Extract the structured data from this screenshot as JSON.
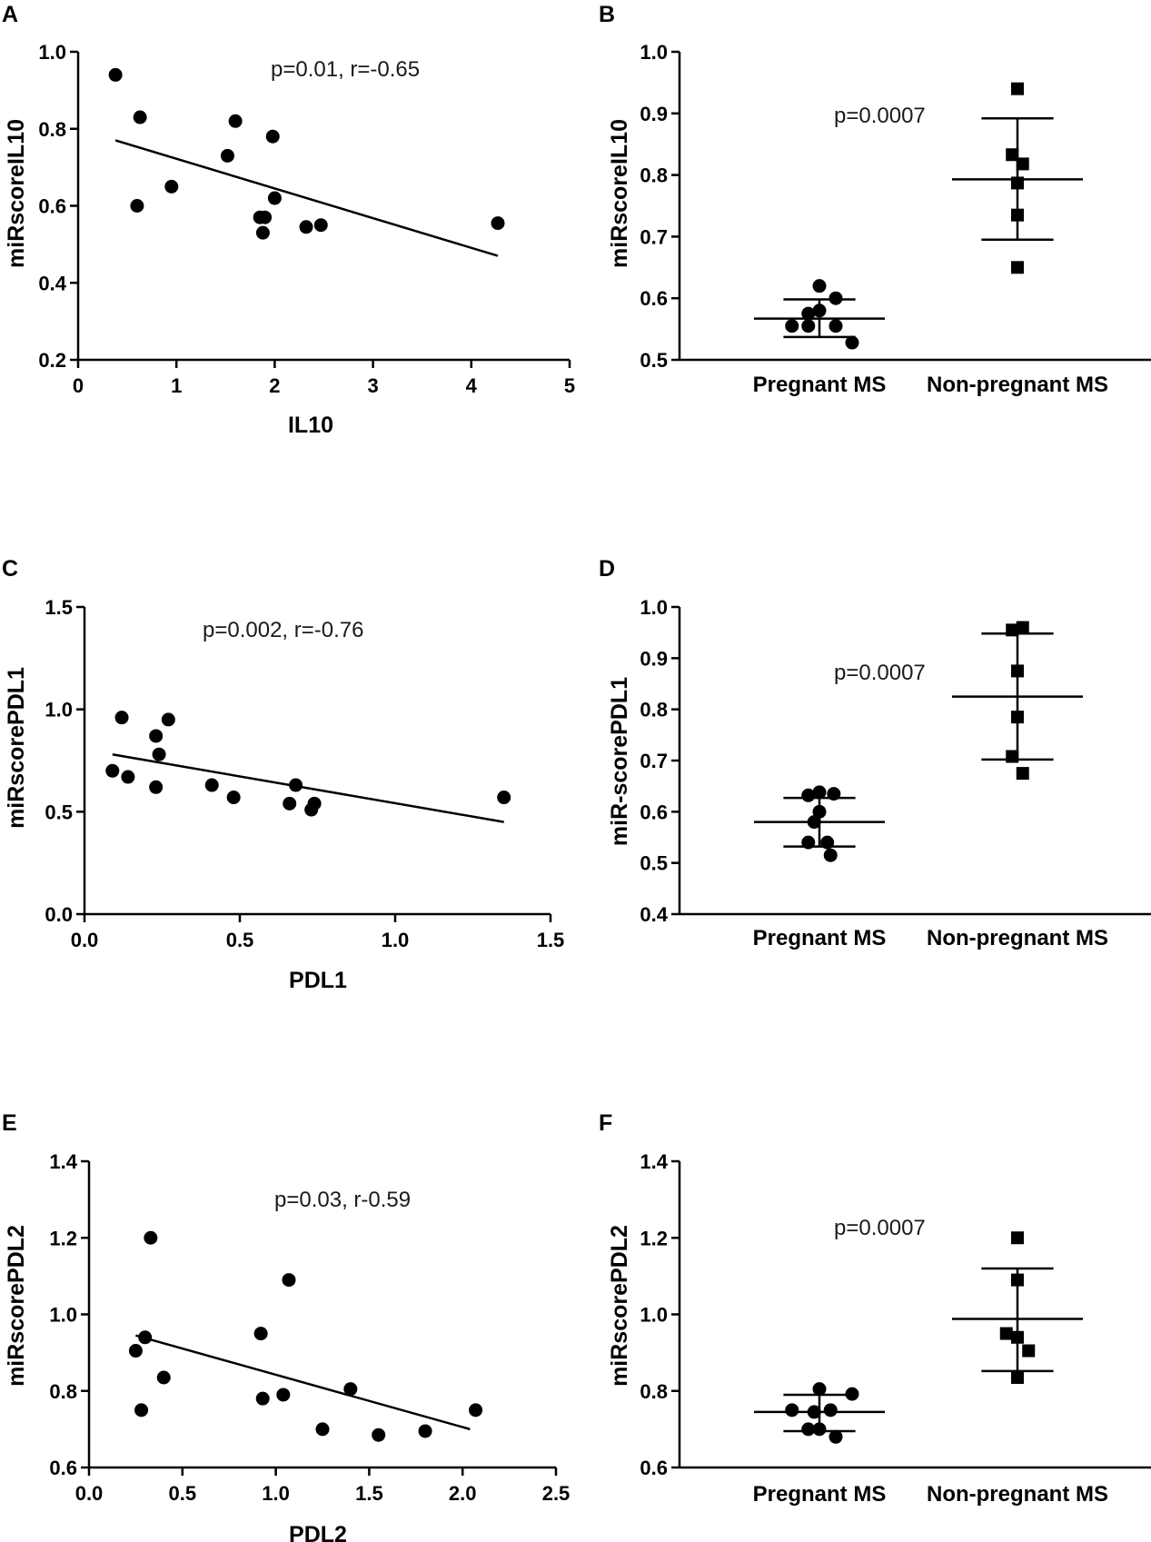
{
  "chart_data": [
    {
      "panel": "A",
      "type": "scatter",
      "xlabel": "IL10",
      "ylabel": "miRscoreIL10",
      "xlim": [
        0,
        5
      ],
      "ylim": [
        0.2,
        1.0
      ],
      "xticks": [
        0,
        1,
        2,
        3,
        4,
        5
      ],
      "yticks": [
        0.2,
        0.4,
        0.6,
        0.8,
        1.0
      ],
      "tick_decimals": 1,
      "annotation": "p=0.01, r=-0.65",
      "points": [
        {
          "x": 0.38,
          "y": 0.94
        },
        {
          "x": 0.63,
          "y": 0.83
        },
        {
          "x": 0.6,
          "y": 0.6
        },
        {
          "x": 0.95,
          "y": 0.65
        },
        {
          "x": 1.52,
          "y": 0.73
        },
        {
          "x": 1.6,
          "y": 0.82
        },
        {
          "x": 1.98,
          "y": 0.78
        },
        {
          "x": 2.0,
          "y": 0.62
        },
        {
          "x": 1.85,
          "y": 0.57
        },
        {
          "x": 1.9,
          "y": 0.57
        },
        {
          "x": 1.88,
          "y": 0.53
        },
        {
          "x": 2.32,
          "y": 0.545
        },
        {
          "x": 2.47,
          "y": 0.55
        },
        {
          "x": 4.27,
          "y": 0.555
        }
      ],
      "fit_line": [
        {
          "x": 0.38,
          "y": 0.77
        },
        {
          "x": 4.27,
          "y": 0.47
        }
      ]
    },
    {
      "panel": "B",
      "type": "scatter",
      "ylabel": "miRscoreIL10",
      "categories": [
        "Pregnant MS",
        "Non-pregnant MS"
      ],
      "ylim": [
        0.5,
        1.0
      ],
      "yticks": [
        0.5,
        0.6,
        0.7,
        0.8,
        0.9,
        1.0
      ],
      "tick_decimals": 1,
      "annotation": "p=0.0007",
      "series": [
        {
          "name": "Pregnant MS",
          "marker": "circle",
          "mean": 0.567,
          "sd_low": 0.537,
          "sd_high": 0.598,
          "points": [
            {
              "dx": 0.0,
              "y": 0.62
            },
            {
              "dx": -0.42,
              "y": 0.555
            },
            {
              "dx": -0.17,
              "y": 0.555
            },
            {
              "dx": -0.17,
              "y": 0.575
            },
            {
              "dx": 0.0,
              "y": 0.58
            },
            {
              "dx": 0.25,
              "y": 0.6
            },
            {
              "dx": 0.25,
              "y": 0.555
            },
            {
              "dx": 0.5,
              "y": 0.528
            }
          ]
        },
        {
          "name": "Non-pregnant MS",
          "marker": "square",
          "mean": 0.793,
          "sd_low": 0.695,
          "sd_high": 0.892,
          "points": [
            {
              "dx": 0.0,
              "y": 0.94
            },
            {
              "dx": -0.08,
              "y": 0.833
            },
            {
              "dx": 0.08,
              "y": 0.818
            },
            {
              "dx": 0.0,
              "y": 0.787
            },
            {
              "dx": 0.0,
              "y": 0.735
            },
            {
              "dx": 0.0,
              "y": 0.65
            }
          ]
        }
      ]
    },
    {
      "panel": "C",
      "type": "scatter",
      "xlabel": "PDL1",
      "ylabel": "miRscorePDL1",
      "xlim": [
        0,
        1.5
      ],
      "ylim": [
        0,
        1.5
      ],
      "xticks": [
        0,
        0.5,
        1.0,
        1.5
      ],
      "yticks": [
        0,
        0.5,
        1.0,
        1.5
      ],
      "tick_decimals": 1,
      "annotation": "p=0.002, r=-0.76",
      "points": [
        {
          "x": 0.09,
          "y": 0.7
        },
        {
          "x": 0.14,
          "y": 0.67
        },
        {
          "x": 0.12,
          "y": 0.96
        },
        {
          "x": 0.23,
          "y": 0.87
        },
        {
          "x": 0.24,
          "y": 0.78
        },
        {
          "x": 0.23,
          "y": 0.62
        },
        {
          "x": 0.27,
          "y": 0.95
        },
        {
          "x": 0.41,
          "y": 0.63
        },
        {
          "x": 0.48,
          "y": 0.57
        },
        {
          "x": 0.66,
          "y": 0.54
        },
        {
          "x": 0.68,
          "y": 0.63
        },
        {
          "x": 0.73,
          "y": 0.51
        },
        {
          "x": 0.74,
          "y": 0.54
        },
        {
          "x": 1.35,
          "y": 0.57
        }
      ],
      "fit_line": [
        {
          "x": 0.09,
          "y": 0.78
        },
        {
          "x": 1.35,
          "y": 0.45
        }
      ]
    },
    {
      "panel": "D",
      "type": "scatter",
      "ylabel": "miR-scorePDL1",
      "categories": [
        "Pregnant MS",
        "Non-pregnant MS"
      ],
      "ylim": [
        0.4,
        1.0
      ],
      "yticks": [
        0.4,
        0.5,
        0.6,
        0.7,
        0.8,
        0.9,
        1.0
      ],
      "tick_decimals": 1,
      "annotation": "p=0.0007",
      "series": [
        {
          "name": "Pregnant MS",
          "marker": "circle",
          "mean": 0.58,
          "sd_low": 0.532,
          "sd_high": 0.627,
          "points": [
            {
              "dx": 0.0,
              "y": 0.638
            },
            {
              "dx": 0.22,
              "y": 0.635
            },
            {
              "dx": -0.17,
              "y": 0.632
            },
            {
              "dx": 0.0,
              "y": 0.6
            },
            {
              "dx": -0.08,
              "y": 0.58
            },
            {
              "dx": -0.17,
              "y": 0.54
            },
            {
              "dx": 0.12,
              "y": 0.54
            },
            {
              "dx": 0.17,
              "y": 0.515
            }
          ]
        },
        {
          "name": "Non-pregnant MS",
          "marker": "square",
          "mean": 0.825,
          "sd_low": 0.702,
          "sd_high": 0.948,
          "points": [
            {
              "dx": -0.08,
              "y": 0.955
            },
            {
              "dx": 0.08,
              "y": 0.96
            },
            {
              "dx": 0.0,
              "y": 0.875
            },
            {
              "dx": 0.0,
              "y": 0.785
            },
            {
              "dx": -0.08,
              "y": 0.708
            },
            {
              "dx": 0.08,
              "y": 0.675
            }
          ]
        }
      ]
    },
    {
      "panel": "E",
      "type": "scatter",
      "xlabel": "PDL2",
      "ylabel": "miRscorePDL2",
      "xlim": [
        0,
        2.5
      ],
      "ylim": [
        0.6,
        1.4
      ],
      "xticks": [
        0,
        0.5,
        1.0,
        1.5,
        2.0,
        2.5
      ],
      "yticks": [
        0.6,
        0.8,
        1.0,
        1.2,
        1.4
      ],
      "tick_decimals": 1,
      "annotation": "p=0.03, r-0.59",
      "points": [
        {
          "x": 0.25,
          "y": 0.905
        },
        {
          "x": 0.28,
          "y": 0.75
        },
        {
          "x": 0.3,
          "y": 0.94
        },
        {
          "x": 0.33,
          "y": 1.2
        },
        {
          "x": 0.4,
          "y": 0.835
        },
        {
          "x": 0.92,
          "y": 0.95
        },
        {
          "x": 0.93,
          "y": 0.78
        },
        {
          "x": 1.04,
          "y": 0.79
        },
        {
          "x": 1.07,
          "y": 1.09
        },
        {
          "x": 1.25,
          "y": 0.7
        },
        {
          "x": 1.4,
          "y": 0.805
        },
        {
          "x": 1.55,
          "y": 0.685
        },
        {
          "x": 1.8,
          "y": 0.695
        },
        {
          "x": 2.07,
          "y": 0.75
        }
      ],
      "fit_line": [
        {
          "x": 0.25,
          "y": 0.945
        },
        {
          "x": 2.04,
          "y": 0.7
        }
      ]
    },
    {
      "panel": "F",
      "type": "scatter",
      "ylabel": "miRscorePDL2",
      "categories": [
        "Pregnant MS",
        "Non-pregnant MS"
      ],
      "ylim": [
        0.6,
        1.4
      ],
      "yticks": [
        0.6,
        0.8,
        1.0,
        1.2,
        1.4
      ],
      "tick_decimals": 1,
      "annotation": "p=0.0007",
      "series": [
        {
          "name": "Pregnant MS",
          "marker": "circle",
          "mean": 0.745,
          "sd_low": 0.695,
          "sd_high": 0.79,
          "points": [
            {
              "dx": 0.0,
              "y": 0.805
            },
            {
              "dx": 0.5,
              "y": 0.792
            },
            {
              "dx": -0.42,
              "y": 0.75
            },
            {
              "dx": -0.17,
              "y": 0.7
            },
            {
              "dx": -0.08,
              "y": 0.745
            },
            {
              "dx": 0.17,
              "y": 0.75
            },
            {
              "dx": 0.0,
              "y": 0.7
            },
            {
              "dx": 0.25,
              "y": 0.68
            }
          ]
        },
        {
          "name": "Non-pregnant MS",
          "marker": "square",
          "mean": 0.988,
          "sd_low": 0.852,
          "sd_high": 1.12,
          "points": [
            {
              "dx": 0.0,
              "y": 1.2
            },
            {
              "dx": 0.0,
              "y": 1.09
            },
            {
              "dx": -0.17,
              "y": 0.95
            },
            {
              "dx": 0.0,
              "y": 0.94
            },
            {
              "dx": 0.17,
              "y": 0.905
            },
            {
              "dx": 0.0,
              "y": 0.835
            }
          ]
        }
      ]
    }
  ]
}
